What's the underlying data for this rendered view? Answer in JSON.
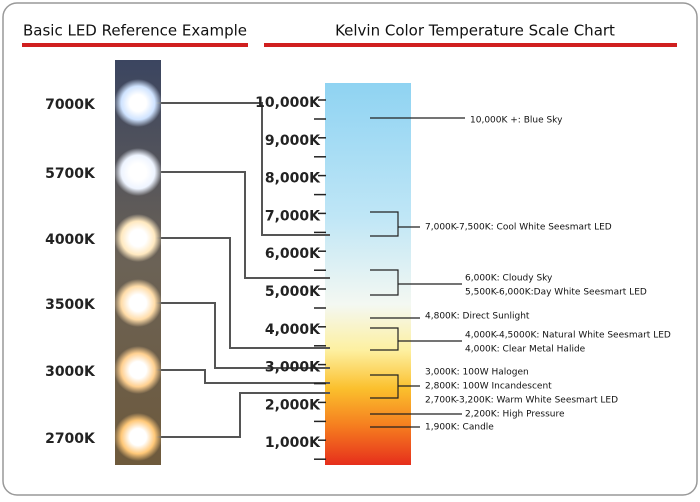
{
  "header_left": "Basic LED Reference Example",
  "header_right": "Kelvin Color Temperature Scale Chart",
  "led_labels": [
    "7000K",
    "5700K",
    "4000K",
    "3500K",
    "3000K",
    "2700K"
  ],
  "scale_labels": [
    "10,000K",
    "9,000K",
    "8,000K",
    "7,000K",
    "6,000K",
    "5,000K",
    "4,000K",
    "3,000K",
    "2,000K",
    "1,000K"
  ],
  "annotations": [
    "10,000K +: Blue Sky",
    "7,000K-7,500K: Cool White Seesmart LED",
    "6,000K: Cloudy Sky",
    "5,500K-6,000K:Day White Seesmart LED",
    "4,800K: Direct Sunlight",
    "4,000K-4,5000K: Natural White Seesmart LED",
    "4,000K: Clear Metal Halide",
    "3,000K: 100W Halogen",
    "2,800K: 100W Incandescent",
    "2,700K-3,200K: Warm White Seesmart LED",
    "2,200K: High Pressure",
    "1,900K: Candle"
  ]
}
